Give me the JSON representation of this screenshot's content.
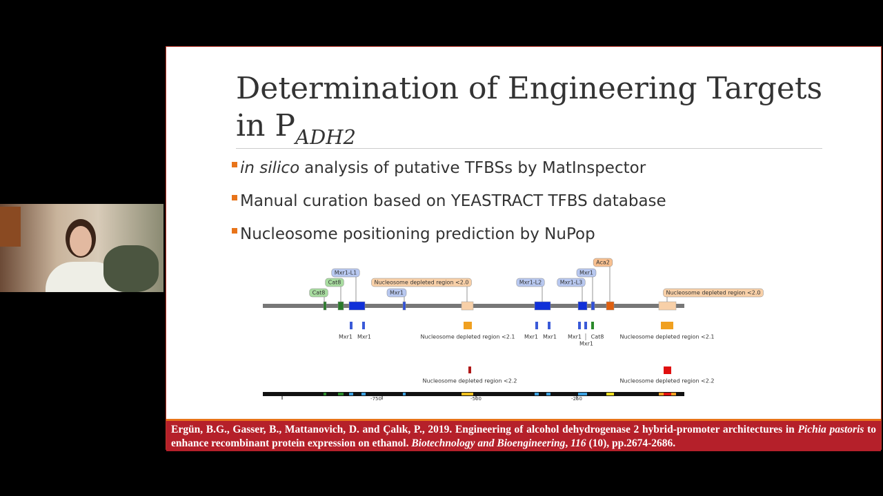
{
  "slide": {
    "title": "Determination of Engineering Targets in P",
    "title_subscript": "ADH2",
    "bullets": [
      {
        "italic": "in silico",
        "text": "analysis of putative TFBSs by MatInspector"
      },
      {
        "text": "Manual curation based on YEASTRACT TFBS database"
      },
      {
        "text": "Nucleosome positioning prediction by NuPop"
      }
    ],
    "diagram": {
      "track1_labels": [
        {
          "label": "Cat8",
          "color": "#a8dca0"
        },
        {
          "label": "Cat8",
          "color": "#a8dca0"
        },
        {
          "label": "Mxr1-L1",
          "color": "#b8c8f0"
        },
        {
          "label": "Mxr1",
          "color": "#b8c8f0"
        },
        {
          "label": "Nucleosome depleted region <2.0",
          "color": "#f8d0a8"
        },
        {
          "label": "Mxr1-L2",
          "color": "#b8c8f0"
        },
        {
          "label": "Mxr1-L3",
          "color": "#b8c8f0"
        },
        {
          "label": "Mxr1",
          "color": "#b8c8f0"
        },
        {
          "label": "Aca2",
          "color": "#f8c090"
        },
        {
          "label": "Nucleosome depleted region <2.0",
          "color": "#f8d0a8"
        }
      ],
      "track2_labels": [
        "Mxr1",
        "Mxr1",
        "Nucleosome depleted region <2.1",
        "Mxr1",
        "Mxr1",
        "Mxr1",
        "Cat8",
        "Mxr1",
        "Nucleosome depleted region <2.1"
      ],
      "track3_labels": [
        "Nucleosome depleted region <2.2",
        "Nucleosome depleted region <2.2"
      ],
      "axis_labels": [
        "-750",
        "-500",
        "-250"
      ]
    },
    "citation": [
      {
        "text": "Ergün, B.G., Gasser, B., Mattanovich, D. and Çalık, P., 2019. Engineering of alcohol dehydrogenase 2 hybrid-promoter architectures in"
      },
      {
        "text": "Pichia pastoris",
        "italic": true
      },
      {
        "text": "to enhance recombinant protein expression on ethanol."
      },
      {
        "text": "Biotechnology and Bioengineering",
        "italic": true
      },
      {
        "text": ","
      },
      {
        "text": "116",
        "italic": true
      },
      {
        "text": "(10), pp.2674-2686."
      }
    ]
  }
}
